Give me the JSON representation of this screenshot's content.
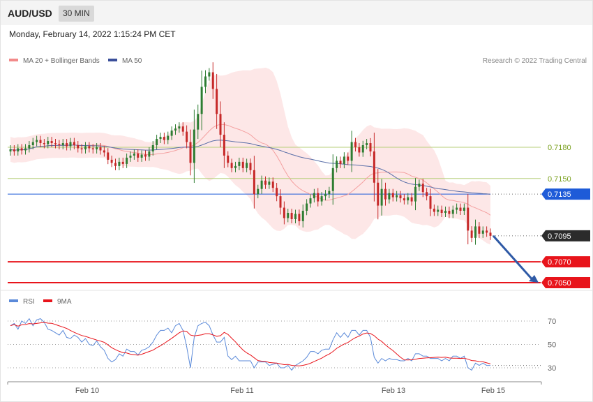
{
  "header": {
    "symbol": "AUD/USD",
    "timeframe": "30 MIN",
    "datetime": "Monday, February 14, 2022 1:15:24 PM CET"
  },
  "legend": {
    "ma20": "MA 20 + Bollinger Bands",
    "ma50": "MA 50",
    "credit": "Research © 2022 Trading Central",
    "rsi": "RSI",
    "rsi_ma": "9MA"
  },
  "colors": {
    "bull": "#2e7d32",
    "bear": "#c62828",
    "band_fill": "#fde3e3",
    "ma20": "#f4a0a0",
    "ma50": "#5a6fa8",
    "level_line": "#b7cf7a",
    "pivot": "#1e5bd8",
    "support": "#e8141b",
    "current": "#2b2b2b",
    "rsi": "#5b8ad9",
    "rsi_ma": "#e8141b",
    "arrow": "#2f5aa6"
  },
  "chart_data": [
    {
      "type": "candlestick",
      "title": "AUD/USD",
      "ylim": [
        0.7042,
        0.726
      ],
      "x_ticks": [
        "Feb 10",
        "Feb 11",
        "Feb 13",
        "Feb 15"
      ],
      "levels": [
        {
          "value": 0.718,
          "label": "0.7180",
          "kind": "resistance"
        },
        {
          "value": 0.715,
          "label": "0.7150",
          "kind": "resistance"
        },
        {
          "value": 0.7135,
          "label": "0.7135",
          "kind": "pivot"
        },
        {
          "value": 0.7095,
          "label": "0.7095",
          "kind": "current"
        },
        {
          "value": 0.707,
          "label": "0.7070",
          "kind": "support"
        },
        {
          "value": 0.705,
          "label": "0.7050",
          "kind": "support"
        }
      ],
      "closes": [
        0.7178,
        0.7176,
        0.7179,
        0.7177,
        0.7179,
        0.7182,
        0.7185,
        0.7187,
        0.7184,
        0.7183,
        0.7186,
        0.7184,
        0.7183,
        0.7182,
        0.7184,
        0.7181,
        0.7185,
        0.7182,
        0.7179,
        0.7178,
        0.7181,
        0.7179,
        0.7178,
        0.718,
        0.7177,
        0.7175,
        0.7168,
        0.7165,
        0.7162,
        0.7166,
        0.7164,
        0.717,
        0.7172,
        0.7174,
        0.717,
        0.7173,
        0.7171,
        0.7176,
        0.7182,
        0.7188,
        0.719,
        0.7187,
        0.7191,
        0.7196,
        0.7198,
        0.72,
        0.7195,
        0.7185,
        0.7165,
        0.7197,
        0.7212,
        0.7238,
        0.7248,
        0.7252,
        0.7236,
        0.7212,
        0.7192,
        0.7172,
        0.7165,
        0.716,
        0.7162,
        0.7166,
        0.716,
        0.7165,
        0.7158,
        0.7135,
        0.714,
        0.7148,
        0.7144,
        0.7147,
        0.7141,
        0.7133,
        0.7122,
        0.7112,
        0.7117,
        0.7111,
        0.7116,
        0.7109,
        0.7119,
        0.7126,
        0.7131,
        0.7136,
        0.7128,
        0.7133,
        0.7135,
        0.7138,
        0.716,
        0.7167,
        0.7164,
        0.7171,
        0.7167,
        0.7185,
        0.718,
        0.7175,
        0.7182,
        0.7184,
        0.7176,
        0.7146,
        0.7124,
        0.714,
        0.713,
        0.7136,
        0.7132,
        0.7134,
        0.7131,
        0.7129,
        0.7132,
        0.7128,
        0.7142,
        0.7145,
        0.7137,
        0.7133,
        0.7121,
        0.7118,
        0.712,
        0.7117,
        0.7119,
        0.7116,
        0.712,
        0.7122,
        0.7119,
        0.7122,
        0.71,
        0.7093,
        0.7104,
        0.7097,
        0.71,
        0.7098,
        0.7095
      ],
      "rsi": {
        "ylim": [
          20,
          80
        ],
        "ticks": [
          70,
          50,
          30
        ],
        "values": [
          66,
          68,
          63,
          70,
          68,
          72,
          66,
          71,
          72,
          69,
          63,
          62,
          60,
          58,
          62,
          56,
          55,
          58,
          56,
          52,
          55,
          50,
          49,
          53,
          48,
          45,
          38,
          35,
          37,
          42,
          40,
          46,
          44,
          44,
          41,
          45,
          46,
          48,
          52,
          58,
          62,
          62,
          64,
          60,
          66,
          68,
          62,
          48,
          30,
          56,
          66,
          68,
          69,
          66,
          58,
          52,
          52,
          56,
          40,
          37,
          40,
          36,
          36,
          36,
          36,
          30,
          35,
          35,
          35,
          32,
          33,
          34,
          30,
          30,
          32,
          28,
          32,
          34,
          36,
          39,
          44,
          44,
          42,
          45,
          46,
          46,
          54,
          60,
          56,
          60,
          56,
          62,
          62,
          58,
          62,
          62,
          56,
          39,
          34,
          38,
          36,
          38,
          37,
          37,
          36,
          36,
          38,
          36,
          42,
          42,
          40,
          40,
          38,
          38,
          38,
          36,
          38,
          36,
          40,
          40,
          38,
          40,
          30,
          28,
          34,
          32,
          34,
          32,
          32
        ]
      }
    }
  ]
}
